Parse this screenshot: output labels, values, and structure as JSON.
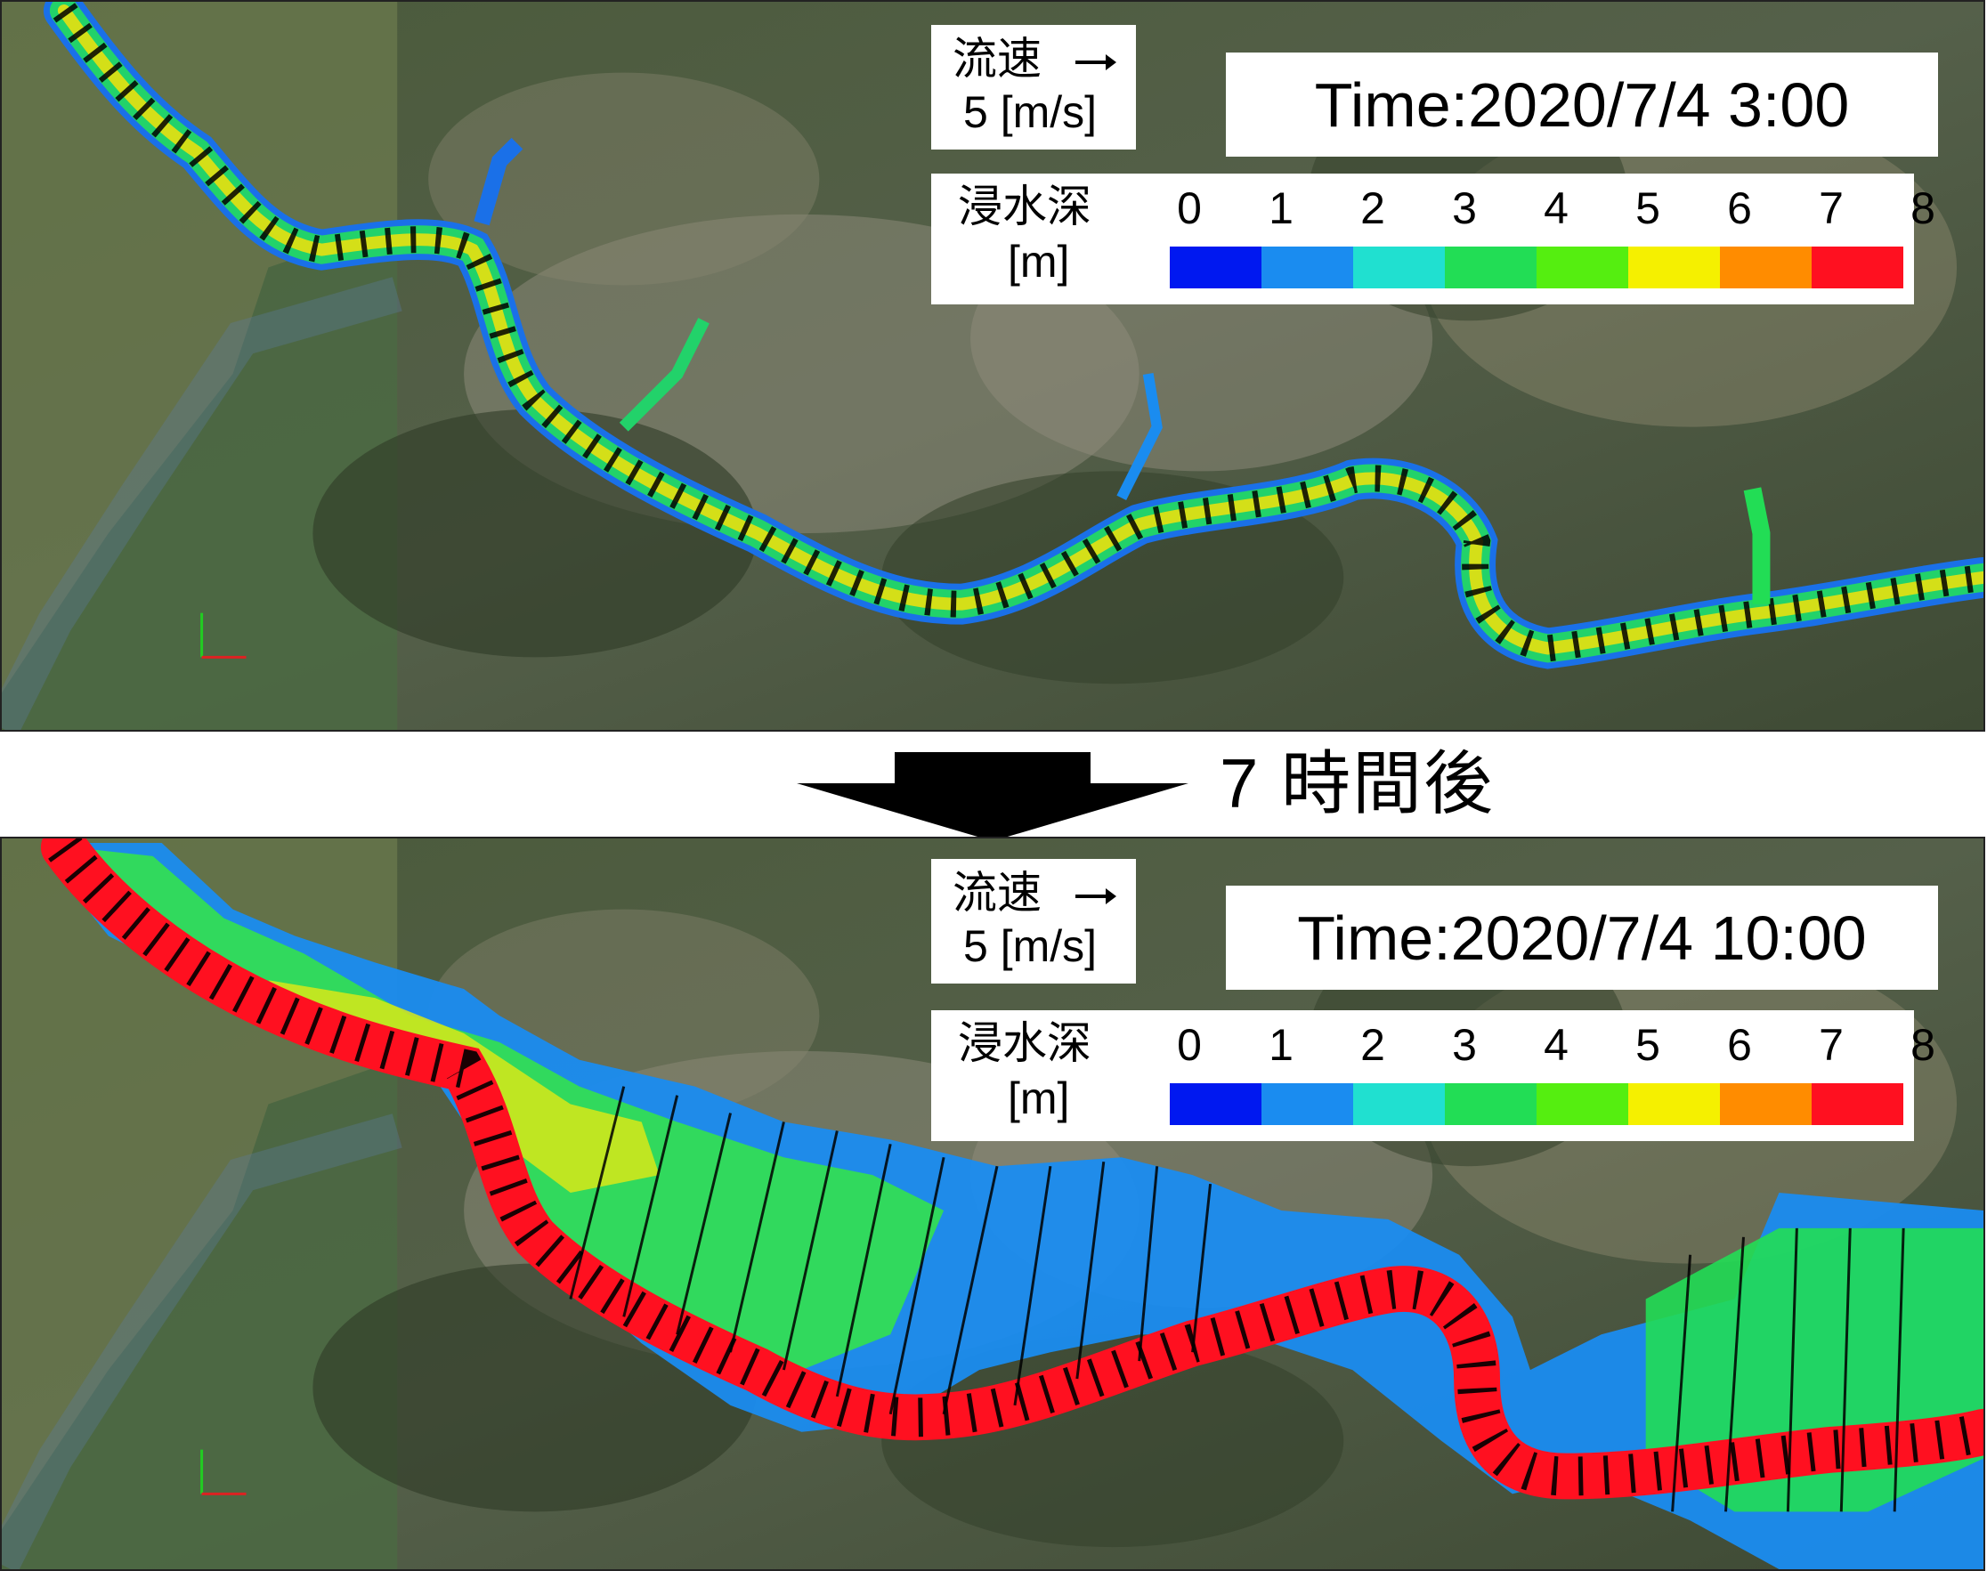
{
  "panels": [
    {
      "time_label": "Time:2020/7/4 3:00",
      "velocity_legend": {
        "label": "流速",
        "scale": "5 [m/s]"
      },
      "depth_legend": {
        "title": "浸水深",
        "unit": "[m]",
        "ticks": [
          "0",
          "1",
          "2",
          "3",
          "4",
          "5",
          "6",
          "7",
          "8"
        ],
        "colors": [
          "#0018f0",
          "#1a8cf0",
          "#20e0d0",
          "#22dd55",
          "#55ee10",
          "#f5f000",
          "#ff8c00",
          "#ff1020"
        ]
      }
    },
    {
      "time_label": "Time:2020/7/4 10:00",
      "velocity_legend": {
        "label": "流速",
        "scale": "5 [m/s]"
      },
      "depth_legend": {
        "title": "浸水深",
        "unit": "[m]",
        "ticks": [
          "0",
          "1",
          "2",
          "3",
          "4",
          "5",
          "6",
          "7",
          "8"
        ],
        "colors": [
          "#0018f0",
          "#1a8cf0",
          "#20e0d0",
          "#22dd55",
          "#55ee10",
          "#f5f000",
          "#ff8c00",
          "#ff1020"
        ]
      }
    }
  ],
  "transition_label": "7 時間後"
}
